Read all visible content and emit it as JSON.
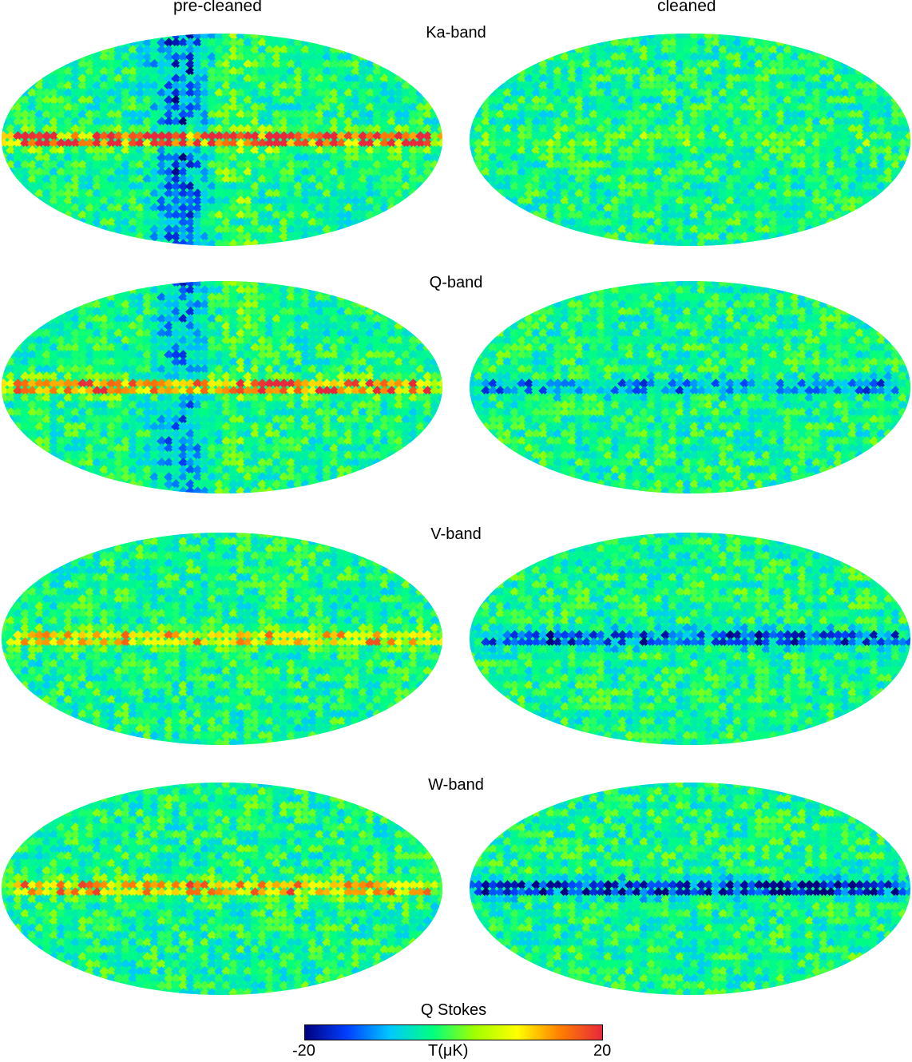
{
  "columns": {
    "left": "pre-cleaned",
    "right": "cleaned"
  },
  "bands": [
    {
      "label": "Ka-band"
    },
    {
      "label": "Q-band"
    },
    {
      "label": "V-band"
    },
    {
      "label": "W-band"
    }
  ],
  "colorbar": {
    "title": "Q Stokes",
    "min_label": "-20",
    "unit_label": "T(μK)",
    "max_label": "20",
    "colormap": [
      "#00007f",
      "#0040ff",
      "#00c8ff",
      "#00ff80",
      "#a0ff00",
      "#ffff00",
      "#ff8000",
      "#e8283c"
    ]
  }
}
